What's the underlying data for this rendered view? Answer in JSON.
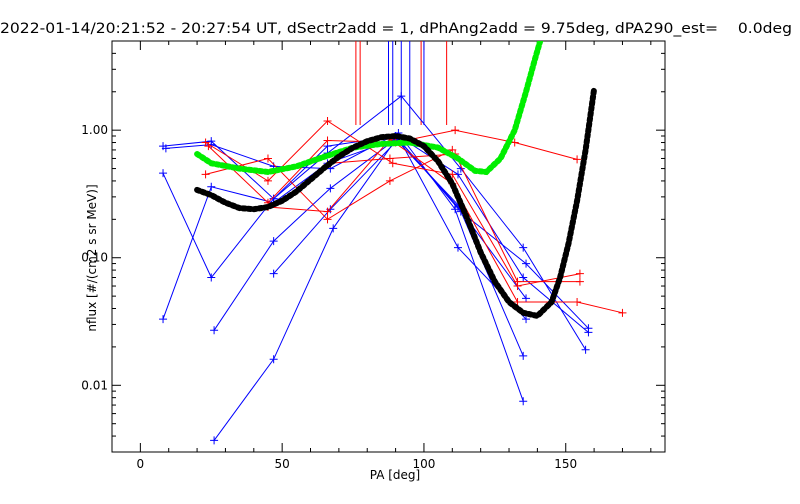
{
  "chart_data": {
    "type": "line",
    "title": "2022-01-14/20:21:52 - 20:27:54 UT, dSectr2add = 1, dPhAng2add = 9.75deg, dPA290_est=    0.0deg",
    "xlabel": "PA [deg]",
    "ylabel": "nflux [#/(cm2 s sr MeV)]",
    "xlim": [
      -10,
      185
    ],
    "ylim": [
      0.003,
      5.0
    ],
    "yscale": "log",
    "grid": false,
    "x_ticks": [
      {
        "value": 0,
        "label": "0"
      },
      {
        "value": 50,
        "label": "50"
      },
      {
        "value": 100,
        "label": "100"
      },
      {
        "value": 150,
        "label": "150"
      }
    ],
    "y_ticks": [
      {
        "value": 0.01,
        "label": "0.01"
      },
      {
        "value": 0.1,
        "label": "0.10"
      },
      {
        "value": 1.0,
        "label": "1.00"
      }
    ],
    "colors": {
      "blue": "#0000ff",
      "red": "#ff0000",
      "green": "#00ee00",
      "black": "#000000"
    },
    "series": [
      {
        "color": "blue",
        "points": [
          [
            8,
            0.033
          ],
          [
            25,
            0.36
          ],
          [
            47,
            0.27
          ],
          [
            66,
            0.55
          ],
          [
            90,
            0.85
          ],
          [
            112,
            0.26
          ],
          [
            135,
            0.017
          ]
        ]
      },
      {
        "color": "blue",
        "points": [
          [
            8,
            0.46
          ],
          [
            25,
            0.07
          ],
          [
            47,
            0.29
          ],
          [
            66,
            0.66
          ],
          [
            92,
            1.85
          ],
          [
            113,
            0.5
          ],
          [
            135,
            0.12
          ],
          [
            157,
            0.019
          ]
        ]
      },
      {
        "color": "blue",
        "points": [
          [
            8,
            0.75
          ],
          [
            25,
            0.82
          ],
          [
            47,
            0.29
          ],
          [
            66,
            0.75
          ],
          [
            90,
            0.9
          ],
          [
            113,
            0.23
          ],
          [
            136,
            0.09
          ],
          [
            158,
            0.028
          ]
        ]
      },
      {
        "color": "blue",
        "points": [
          [
            9,
            0.72
          ],
          [
            25,
            0.77
          ],
          [
            47,
            0.52
          ],
          [
            67,
            0.5
          ],
          [
            91,
            0.95
          ],
          [
            111,
            0.24
          ],
          [
            135,
            0.0075
          ]
        ]
      },
      {
        "color": "blue",
        "points": [
          [
            26,
            0.027
          ],
          [
            47,
            0.135
          ],
          [
            67,
            0.35
          ],
          [
            91,
            0.88
          ],
          [
            112,
            0.12
          ],
          [
            136,
            0.033
          ]
        ]
      },
      {
        "color": "blue",
        "points": [
          [
            26,
            0.0037
          ],
          [
            47,
            0.016
          ],
          [
            68,
            0.17
          ],
          [
            91,
            0.9
          ],
          [
            112,
            0.45
          ],
          [
            135,
            0.07
          ],
          [
            158,
            0.026
          ]
        ]
      },
      {
        "color": "blue",
        "points": [
          [
            47,
            0.075
          ],
          [
            67,
            0.24
          ],
          [
            91,
            0.85
          ],
          [
            112,
            0.25
          ],
          [
            136,
            0.048
          ]
        ]
      },
      {
        "color": "red",
        "points": [
          [
            23,
            0.45
          ],
          [
            45,
            0.6
          ],
          [
            66,
            0.2
          ],
          [
            88,
            0.4
          ],
          [
            110,
            0.7
          ]
        ]
      },
      {
        "color": "red",
        "points": [
          [
            23,
            0.8
          ],
          [
            45,
            0.4
          ],
          [
            66,
            1.18
          ],
          [
            89,
            0.55
          ],
          [
            110,
            0.45
          ],
          [
            133,
            0.06
          ],
          [
            155,
            0.075
          ]
        ]
      },
      {
        "color": "red",
        "points": [
          [
            24,
            0.75
          ],
          [
            45,
            0.27
          ],
          [
            66,
            0.83
          ],
          [
            90,
            0.8
          ],
          [
            111,
            1.0
          ],
          [
            132,
            0.8
          ],
          [
            154,
            0.59
          ]
        ]
      },
      {
        "color": "red",
        "points": [
          [
            45,
            0.25
          ],
          [
            66,
            0.23
          ],
          [
            88,
            0.85
          ],
          [
            110,
            0.38
          ],
          [
            133,
            0.045
          ],
          [
            154,
            0.045
          ],
          [
            170,
            0.037
          ]
        ]
      },
      {
        "color": "red",
        "points": [
          [
            67,
            0.55
          ],
          [
            88,
            0.6
          ],
          [
            111,
            0.65
          ],
          [
            133,
            0.065
          ],
          [
            155,
            0.065
          ]
        ]
      }
    ],
    "fits": [
      {
        "color": "green",
        "points": [
          [
            20,
            0.65
          ],
          [
            25,
            0.55
          ],
          [
            35,
            0.5
          ],
          [
            45,
            0.47
          ],
          [
            55,
            0.52
          ],
          [
            65,
            0.62
          ],
          [
            75,
            0.73
          ],
          [
            85,
            0.78
          ],
          [
            95,
            0.8
          ],
          [
            105,
            0.73
          ],
          [
            112,
            0.6
          ],
          [
            118,
            0.48
          ],
          [
            122,
            0.47
          ],
          [
            127,
            0.6
          ],
          [
            132,
            1.0
          ],
          [
            136,
            2.0
          ],
          [
            139,
            3.5
          ],
          [
            141,
            5.0
          ]
        ]
      },
      {
        "color": "black",
        "points": [
          [
            20,
            0.34
          ],
          [
            25,
            0.31
          ],
          [
            30,
            0.27
          ],
          [
            35,
            0.245
          ],
          [
            40,
            0.24
          ],
          [
            45,
            0.25
          ],
          [
            50,
            0.28
          ],
          [
            55,
            0.33
          ],
          [
            60,
            0.41
          ],
          [
            65,
            0.51
          ],
          [
            70,
            0.62
          ],
          [
            75,
            0.73
          ],
          [
            80,
            0.82
          ],
          [
            85,
            0.88
          ],
          [
            90,
            0.9
          ],
          [
            95,
            0.86
          ],
          [
            100,
            0.75
          ],
          [
            105,
            0.57
          ],
          [
            110,
            0.38
          ],
          [
            115,
            0.21
          ],
          [
            120,
            0.11
          ],
          [
            125,
            0.065
          ],
          [
            130,
            0.045
          ],
          [
            135,
            0.037
          ],
          [
            140,
            0.035
          ],
          [
            145,
            0.045
          ],
          [
            148,
            0.07
          ],
          [
            151,
            0.13
          ],
          [
            154,
            0.28
          ],
          [
            157,
            0.7
          ],
          [
            160,
            2.1
          ]
        ]
      }
    ],
    "marker_lines": [
      {
        "color": "red",
        "x": 76
      },
      {
        "color": "red",
        "x": 77.5
      },
      {
        "color": "red",
        "x": 99
      },
      {
        "color": "red",
        "x": 108
      },
      {
        "color": "blue",
        "x": 87.5
      },
      {
        "color": "blue",
        "x": 89
      },
      {
        "color": "blue",
        "x": 92
      },
      {
        "color": "blue",
        "x": 95
      },
      {
        "color": "blue",
        "x": 100
      }
    ]
  }
}
